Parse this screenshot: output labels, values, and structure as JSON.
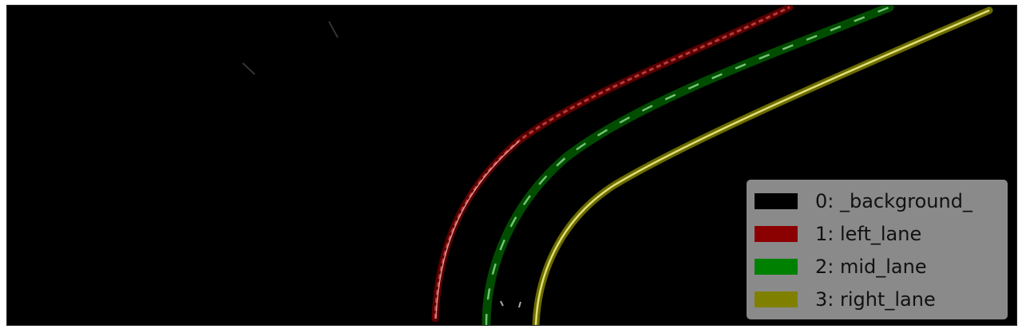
{
  "image": {
    "background_color": "#000000",
    "lanes": [
      {
        "name": "left_lane",
        "color": "#8b0000"
      },
      {
        "name": "mid_lane",
        "color": "#008000"
      },
      {
        "name": "right_lane",
        "color": "#808000"
      }
    ]
  },
  "legend": {
    "items": [
      {
        "label": "0: _background_",
        "color": "#000000"
      },
      {
        "label": "1: left_lane",
        "color": "#8b0000"
      },
      {
        "label": "2: mid_lane",
        "color": "#008000"
      },
      {
        "label": "3: right_lane",
        "color": "#808000"
      }
    ]
  }
}
